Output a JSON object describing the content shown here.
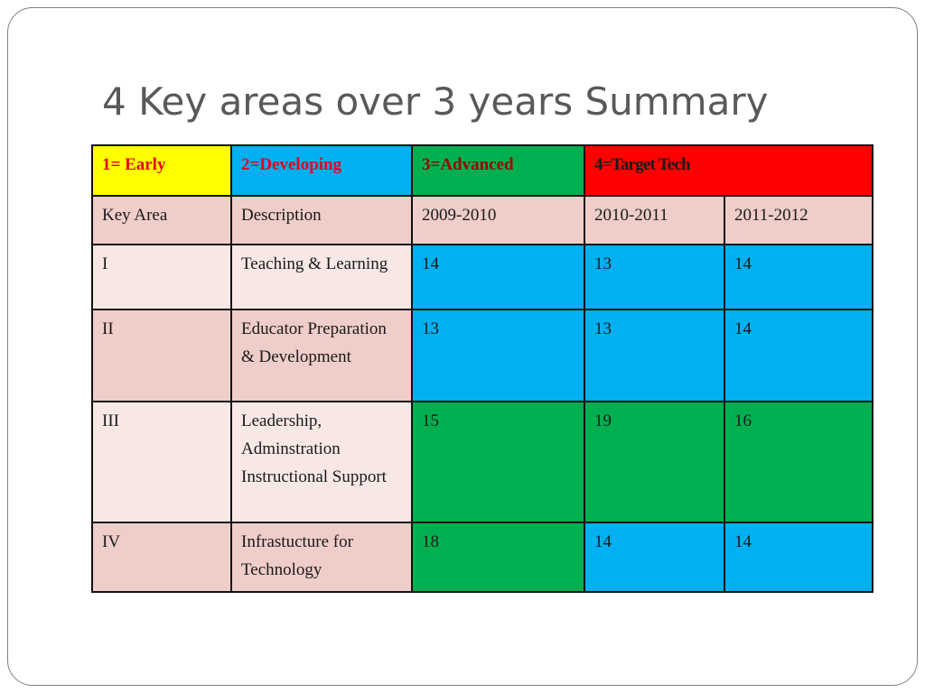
{
  "title": "4 Key areas over 3 years Summary",
  "colors": {
    "early": "#ffff00",
    "developing": "#00b0f0",
    "advanced": "#00b050",
    "target_tech": "#ff0000",
    "legend_text_red": "#e8001c",
    "legend_text_dark_red": "#9c0006",
    "header_bg": "#efcdc9",
    "row_light_bg": "#f7e8e6"
  },
  "legend": {
    "early": "1= Early",
    "developing": "2=Developing",
    "advanced": "3=Advanced",
    "target_tech": "4=Target Tech"
  },
  "columns": {
    "key_area": "Key Area",
    "description": "Description",
    "y1": "2009-2010",
    "y2": "2010-2011",
    "y3": "2011-2012"
  },
  "rows": [
    {
      "key": "I",
      "description": "Teaching & Learning",
      "values": [
        {
          "score": "14",
          "level": "developing"
        },
        {
          "score": "13",
          "level": "developing"
        },
        {
          "score": "14",
          "level": "developing"
        }
      ]
    },
    {
      "key": "II",
      "description": "Educator Preparation & Development",
      "values": [
        {
          "score": "13",
          "level": "developing"
        },
        {
          "score": "13",
          "level": "developing"
        },
        {
          "score": "14",
          "level": "developing"
        }
      ]
    },
    {
      "key": "III",
      "description": "Leadership, Adminstration Instructional Support",
      "values": [
        {
          "score": "15",
          "level": "advanced"
        },
        {
          "score": "19",
          "level": "advanced"
        },
        {
          "score": "16",
          "level": "advanced"
        }
      ]
    },
    {
      "key": "IV",
      "description": "Infrastucture for Technology",
      "values": [
        {
          "score": "18",
          "level": "advanced"
        },
        {
          "score": "14",
          "level": "developing"
        },
        {
          "score": "14",
          "level": "developing"
        }
      ]
    }
  ]
}
